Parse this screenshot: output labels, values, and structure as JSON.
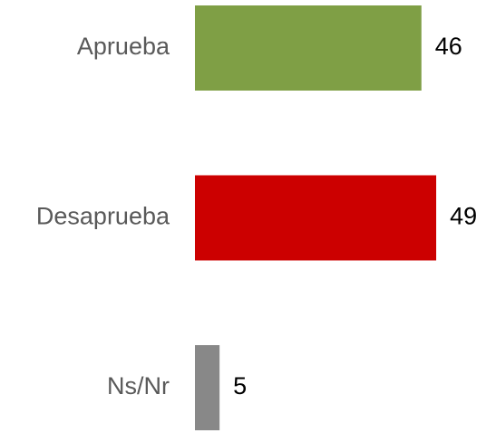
{
  "chart_data": {
    "type": "hbar",
    "categories": [
      "Aprueba",
      "Desaprueba",
      "Ns/Nr"
    ],
    "values": [
      46,
      49,
      5
    ],
    "colors": [
      "#7f9f45",
      "#cc0000",
      "#888888"
    ]
  }
}
